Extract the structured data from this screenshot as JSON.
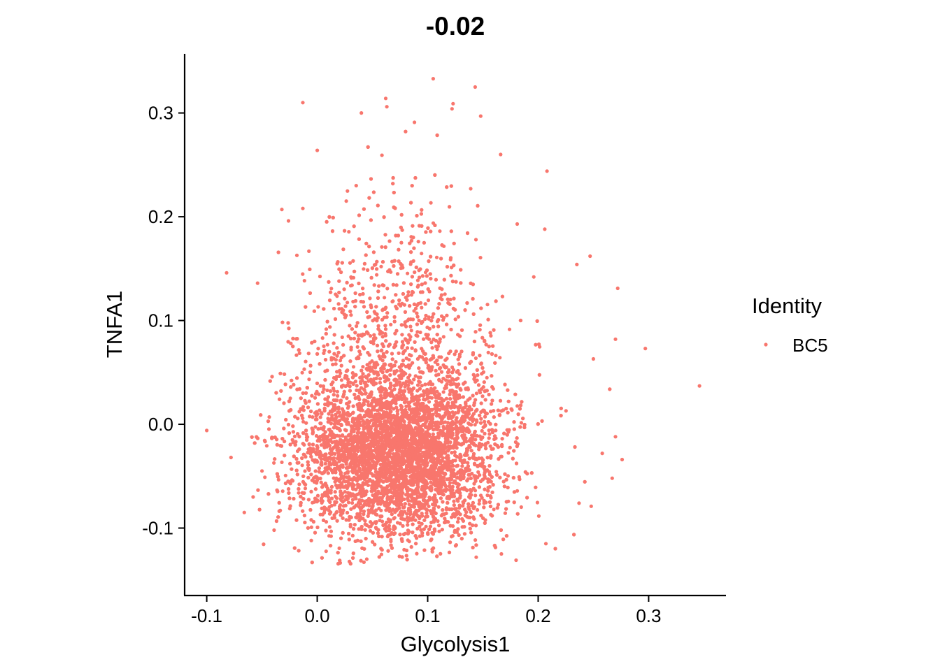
{
  "chart_data": {
    "type": "scatter",
    "title": "-0.02",
    "xlabel": "Glycolysis1",
    "ylabel": "TNFA1",
    "xlim": [
      -0.12,
      0.37
    ],
    "ylim": [
      -0.165,
      0.357
    ],
    "x_ticks": [
      -0.1,
      0.0,
      0.1,
      0.2,
      0.3
    ],
    "x_tick_labels": [
      "-0.1",
      "0.0",
      "0.1",
      "0.2",
      "0.3"
    ],
    "y_ticks": [
      -0.1,
      0.0,
      0.1,
      0.2,
      0.3
    ],
    "y_tick_labels": [
      "-0.1",
      "0.0",
      "0.1",
      "0.2",
      "0.3"
    ],
    "grid": false,
    "legend": {
      "title": "Identity",
      "position": "right",
      "entries": [
        {
          "label": "BC5",
          "color": "#F8766D"
        }
      ]
    },
    "series": [
      {
        "name": "BC5",
        "color": "#F8766D",
        "bulk_distribution": {
          "n": 9000,
          "x_center": 0.08,
          "x_sd": 0.045,
          "y_center": -0.035,
          "y_sd": 0.055,
          "y_skew": "upward tail"
        },
        "outliers": [
          {
            "x": 0.105,
            "y": 0.333
          },
          {
            "x": 0.143,
            "y": 0.325
          },
          {
            "x": 0.062,
            "y": 0.314
          },
          {
            "x": 0.123,
            "y": 0.309
          },
          {
            "x": -0.013,
            "y": 0.31
          },
          {
            "x": 0.063,
            "y": 0.306
          },
          {
            "x": 0.04,
            "y": 0.3
          },
          {
            "x": 0.148,
            "y": 0.297
          },
          {
            "x": 0.088,
            "y": 0.291
          },
          {
            "x": 0.122,
            "y": 0.304
          },
          {
            "x": 0.0,
            "y": 0.264
          },
          {
            "x": 0.166,
            "y": 0.26
          },
          {
            "x": 0.208,
            "y": 0.244
          },
          {
            "x": -0.032,
            "y": 0.207
          },
          {
            "x": -0.026,
            "y": 0.196
          },
          {
            "x": -0.013,
            "y": 0.208
          },
          {
            "x": 0.206,
            "y": 0.188
          },
          {
            "x": 0.181,
            "y": 0.193
          },
          {
            "x": -0.082,
            "y": 0.146
          },
          {
            "x": -0.054,
            "y": 0.136
          },
          {
            "x": 0.247,
            "y": 0.162
          },
          {
            "x": 0.272,
            "y": 0.131
          },
          {
            "x": 0.235,
            "y": 0.154
          },
          {
            "x": 0.297,
            "y": 0.073
          },
          {
            "x": 0.27,
            "y": 0.082
          },
          {
            "x": 0.346,
            "y": 0.037
          },
          {
            "x": -0.1,
            "y": -0.006
          },
          {
            "x": -0.078,
            "y": -0.032
          },
          {
            "x": -0.066,
            "y": -0.085
          },
          {
            "x": -0.039,
            "y": -0.102
          },
          {
            "x": 0.25,
            "y": 0.063
          },
          {
            "x": 0.267,
            "y": -0.052
          },
          {
            "x": 0.276,
            "y": -0.034
          },
          {
            "x": 0.248,
            "y": -0.079
          },
          {
            "x": 0.237,
            "y": -0.076
          },
          {
            "x": 0.18,
            "y": -0.131
          },
          {
            "x": 0.207,
            "y": -0.115
          },
          {
            "x": 0.258,
            "y": -0.028
          },
          {
            "x": 0.27,
            "y": -0.012
          },
          {
            "x": -0.058,
            "y": -0.07
          },
          {
            "x": -0.05,
            "y": -0.045
          },
          {
            "x": 0.196,
            "y": 0.142
          }
        ]
      }
    ]
  }
}
